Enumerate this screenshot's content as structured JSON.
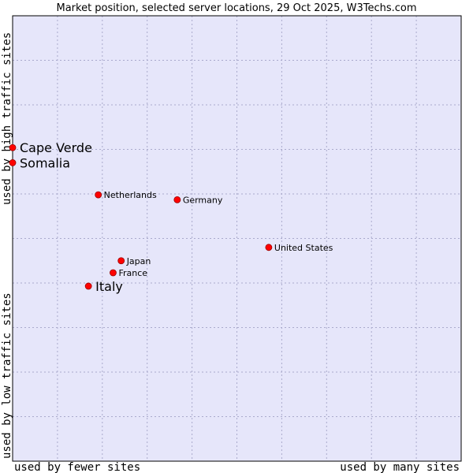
{
  "chart_data": {
    "type": "scatter",
    "title": "Market position, selected server locations, 29 Oct 2025, W3Techs.com",
    "xlabel_left": "used by fewer sites",
    "xlabel_right": "used by many sites",
    "ylabel_bottom": "used by low traffic sites",
    "ylabel_top": "used by high traffic sites",
    "xlim": [
      0,
      100
    ],
    "ylim": [
      0,
      100
    ],
    "grid": true,
    "colors": {
      "plot_bg": "#e6e6fa",
      "grid": "#aaaacc",
      "frame": "#000000",
      "point": "#ff0000",
      "point_outline": "#990000"
    },
    "points": [
      {
        "label": "Cape Verde",
        "x": 0.0,
        "y": 70.4,
        "highlight": true
      },
      {
        "label": "Somalia",
        "x": 0.0,
        "y": 67.0,
        "highlight": true
      },
      {
        "label": "Netherlands",
        "x": 19.1,
        "y": 59.8,
        "highlight": false
      },
      {
        "label": "Germany",
        "x": 36.7,
        "y": 58.7,
        "highlight": false
      },
      {
        "label": "United States",
        "x": 57.1,
        "y": 48.0,
        "highlight": false
      },
      {
        "label": "Japan",
        "x": 24.2,
        "y": 45.0,
        "highlight": false
      },
      {
        "label": "France",
        "x": 22.4,
        "y": 42.3,
        "highlight": false
      },
      {
        "label": "Italy",
        "x": 16.9,
        "y": 39.3,
        "highlight": true
      }
    ]
  }
}
